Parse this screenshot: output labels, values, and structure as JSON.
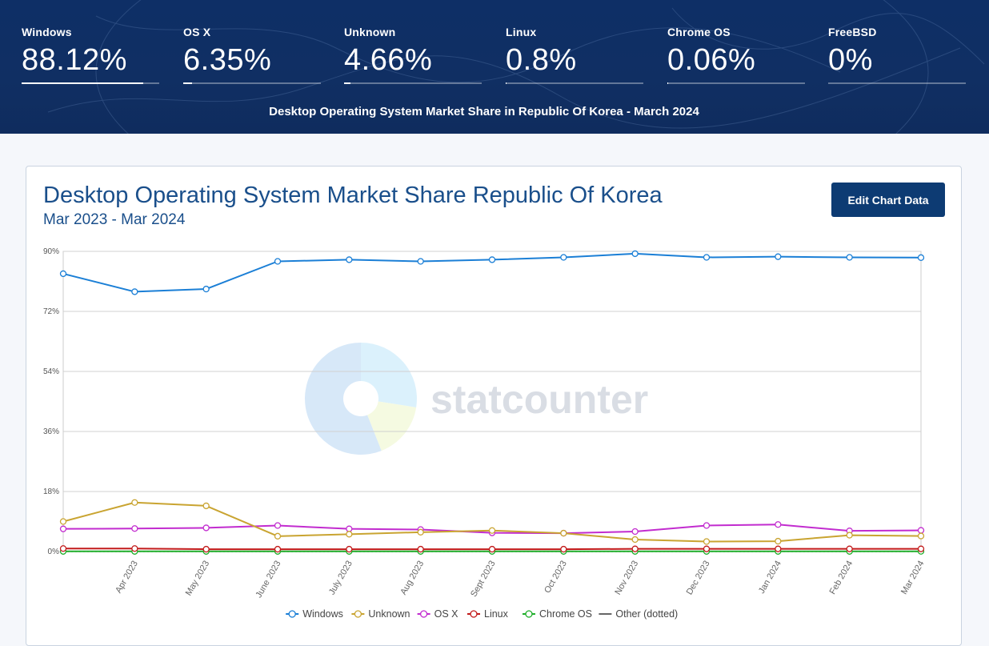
{
  "header": {
    "stats": [
      {
        "name": "Windows",
        "value": "88.12%",
        "share": 88.12
      },
      {
        "name": "OS X",
        "value": "6.35%",
        "share": 6.35
      },
      {
        "name": "Unknown",
        "value": "4.66%",
        "share": 4.66
      },
      {
        "name": "Linux",
        "value": "0.8%",
        "share": 0.8
      },
      {
        "name": "Chrome OS",
        "value": "0.06%",
        "share": 0.06
      },
      {
        "name": "FreeBSD",
        "value": "0%",
        "share": 0
      }
    ],
    "title": "Desktop Operating System Market Share in Republic Of Korea - March 2024"
  },
  "card": {
    "title": "Desktop Operating System Market Share Republic Of Korea",
    "subtitle": "Mar 2023 - Mar 2024",
    "edit_button": "Edit Chart Data",
    "watermark": "statcounter"
  },
  "chart_data": {
    "type": "line",
    "categories": [
      "Mar 2023",
      "Apr 2023",
      "May 2023",
      "June 2023",
      "July 2023",
      "Aug 2023",
      "Sept 2023",
      "Oct 2023",
      "Nov 2023",
      "Dec 2023",
      "Jan 2024",
      "Feb 2024",
      "Mar 2024"
    ],
    "x_tick_labels": [
      "",
      "Apr 2023",
      "May 2023",
      "June 2023",
      "July 2023",
      "Aug 2023",
      "Sept 2023",
      "Oct 2023",
      "Nov 2023",
      "Dec 2023",
      "Jan 2024",
      "Feb 2024",
      "Mar 2024"
    ],
    "ylim": [
      0,
      90
    ],
    "yticks": [
      0,
      18,
      36,
      54,
      72,
      90
    ],
    "ytick_labels": [
      "0%",
      "18%",
      "36%",
      "54%",
      "72%",
      "90%"
    ],
    "series": [
      {
        "name": "Windows",
        "color": "#1b7fd6",
        "values": [
          83.3,
          77.9,
          78.7,
          87.0,
          87.5,
          87.0,
          87.5,
          88.2,
          89.3,
          88.2,
          88.4,
          88.2,
          88.12
        ]
      },
      {
        "name": "Unknown",
        "color": "#c9a431",
        "values": [
          9.0,
          14.7,
          13.7,
          4.6,
          5.2,
          5.8,
          6.3,
          5.5,
          3.6,
          3.0,
          3.1,
          4.9,
          4.66
        ]
      },
      {
        "name": "OS X",
        "color": "#c22ccf",
        "values": [
          6.8,
          6.9,
          7.1,
          7.8,
          6.8,
          6.6,
          5.6,
          5.5,
          6.0,
          7.8,
          8.1,
          6.2,
          6.35
        ]
      },
      {
        "name": "Linux",
        "color": "#c21b1b",
        "values": [
          0.9,
          0.9,
          0.7,
          0.7,
          0.7,
          0.7,
          0.7,
          0.7,
          0.8,
          0.8,
          0.8,
          0.8,
          0.8
        ]
      },
      {
        "name": "Chrome OS",
        "color": "#1fae2a",
        "values": [
          0.05,
          0.05,
          0.05,
          0.05,
          0.05,
          0.05,
          0.05,
          0.05,
          0.05,
          0.05,
          0.05,
          0.05,
          0.06
        ]
      },
      {
        "name": "Other (dotted)",
        "color": "#555555",
        "dotted": true,
        "values": [
          0.02,
          0.02,
          0.02,
          0.02,
          0.02,
          0.02,
          0.02,
          0.02,
          0.02,
          0.02,
          0.02,
          0.02,
          0.02
        ]
      }
    ],
    "legend": [
      "Windows",
      "Unknown",
      "OS X",
      "Linux",
      "Chrome OS",
      "Other (dotted)"
    ],
    "legend_position": "bottom-center"
  }
}
